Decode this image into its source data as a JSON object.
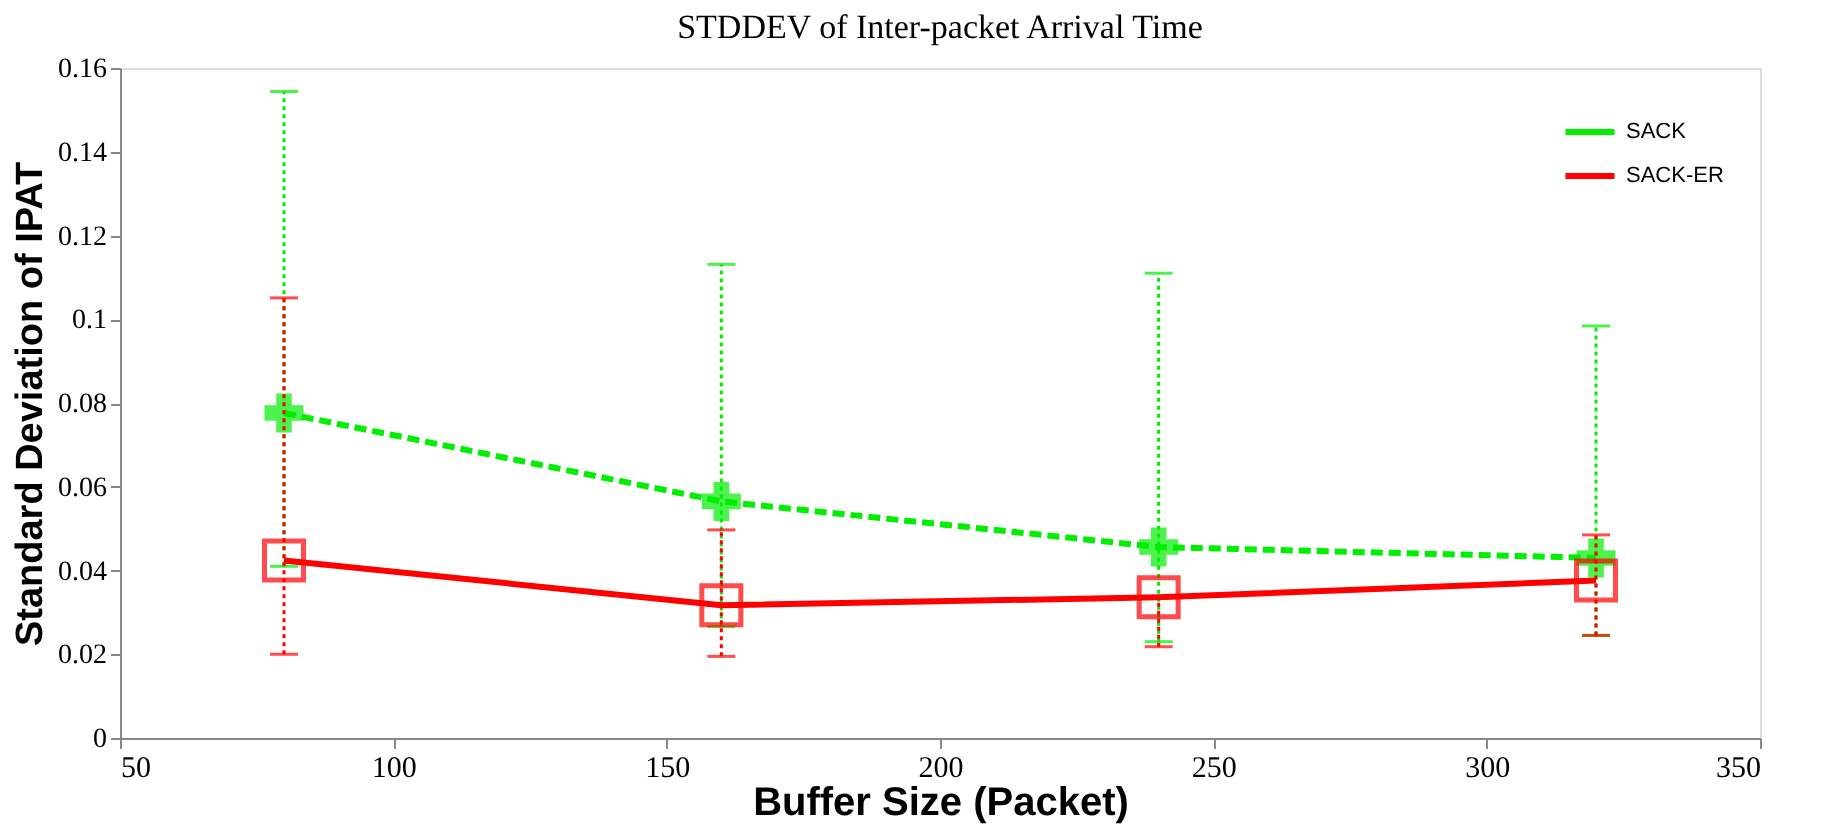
{
  "chart_data": {
    "type": "line",
    "title": "STDDEV of Inter-packet Arrival Time",
    "xlabel": "Buffer Size (Packet)",
    "ylabel": "Standard Deviation of IPAT",
    "x": [
      80,
      160,
      240,
      320
    ],
    "series": [
      {
        "name": "SACK",
        "color": "#00ee00",
        "values": [
          0.0776,
          0.0565,
          0.0456,
          0.043
        ],
        "errors": [
          [
            0.041,
            0.1544
          ],
          [
            0.0266,
            0.1131
          ],
          [
            0.023,
            0.111
          ],
          [
            0.0245,
            0.0984
          ]
        ],
        "line_style": "dashed",
        "marker": "cross"
      },
      {
        "name": "SACK-ER",
        "color": "#ff0000",
        "values": [
          0.0424,
          0.0317,
          0.0336,
          0.0376
        ],
        "errors": [
          [
            0.02,
            0.1051
          ],
          [
            0.0195,
            0.0497
          ],
          [
            0.0218,
            0.0336
          ],
          [
            0.0245,
            0.0485
          ]
        ],
        "line_style": "solid",
        "marker": "square"
      }
    ],
    "xlim": [
      50,
      350
    ],
    "xticks": [
      50,
      100,
      150,
      200,
      250,
      300,
      350
    ],
    "ylim": [
      0,
      0.16
    ],
    "yticks": [
      0,
      0.02,
      0.04,
      0.06,
      0.08,
      0.1,
      0.12,
      0.14,
      0.16
    ],
    "grid": false,
    "legend": "top right"
  }
}
